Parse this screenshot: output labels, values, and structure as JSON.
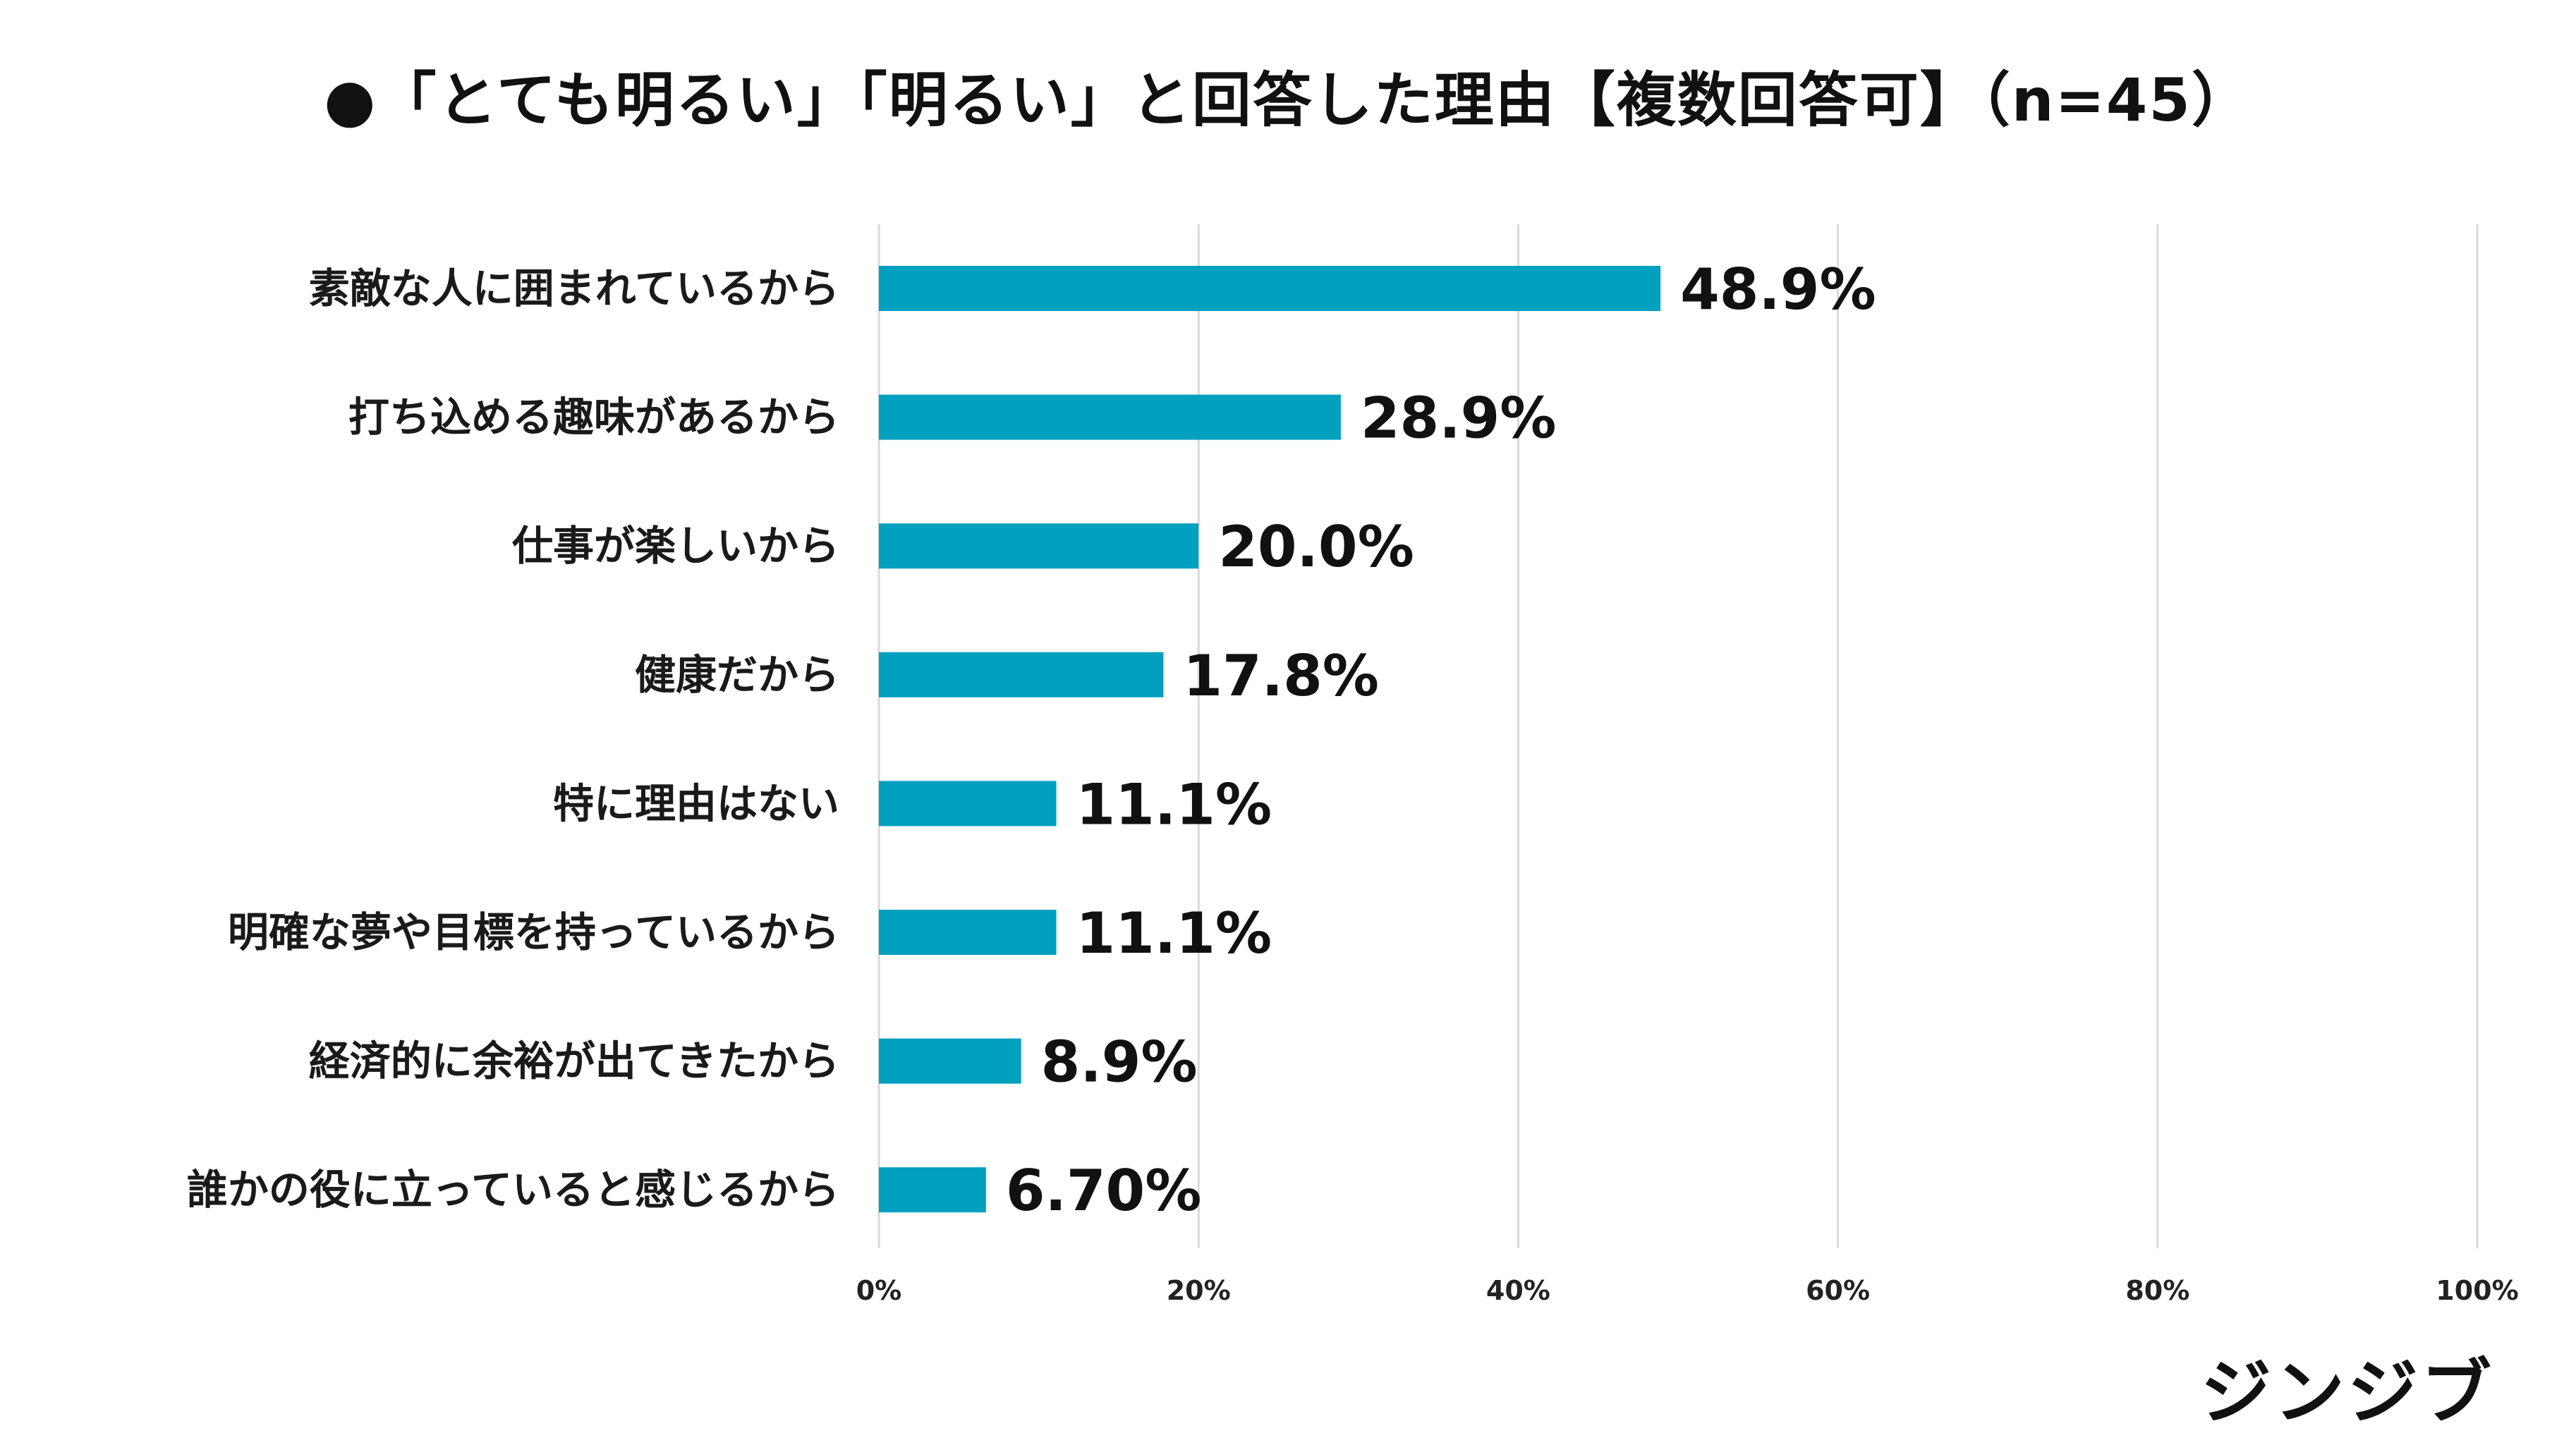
{
  "chart_data": {
    "type": "bar",
    "orientation": "horizontal",
    "title": "●「とても明るい」「明るい」と回答した理由【複数回答可】（n=45）",
    "categories": [
      "素敵な人に囲まれているから",
      "打ち込める趣味があるから",
      "仕事が楽しいから",
      "健康だから",
      "特に理由はない",
      "明確な夢や目標を持っているから",
      "経済的に余裕が出てきたから",
      "誰かの役に立っていると感じるから"
    ],
    "values": [
      48.9,
      28.9,
      20.0,
      17.8,
      11.1,
      11.1,
      8.9,
      6.7
    ],
    "value_labels": [
      "48.9%",
      "28.9%",
      "20.0%",
      "17.8%",
      "11.1%",
      "11.1%",
      "8.9%",
      "6.70%"
    ],
    "xlim": [
      0,
      100
    ],
    "x_ticks": [
      0,
      20,
      40,
      60,
      80,
      100
    ],
    "x_tick_labels": [
      "0%",
      "20%",
      "40%",
      "60%",
      "80%",
      "100%"
    ],
    "grid": true,
    "legend": "none",
    "bar_color": "#00A0BE",
    "grid_color": "#D9D9D9"
  },
  "brand": {
    "logo_text": "ジンジブ"
  }
}
